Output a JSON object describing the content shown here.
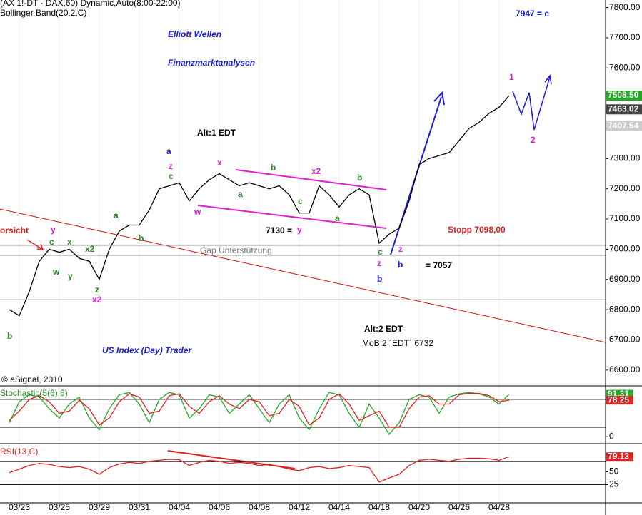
{
  "chart_data": [
    {
      "type": "line",
      "title": "(AX 1!-DT - DAX,60) Dynamic,Auto(8:00-22:00)",
      "subtitle": "Bollinger Band(20,2,C)",
      "copyright": "© eSignal, 2010",
      "color": "#000000",
      "categories": [
        null,
        "03/23",
        null,
        null,
        null,
        "03/25",
        null,
        null,
        null,
        "03/29",
        null,
        null,
        null,
        "03/31",
        null,
        null,
        null,
        "04/04",
        null,
        null,
        null,
        "04/06",
        null,
        null,
        null,
        "04/08",
        null,
        null,
        null,
        "04/12",
        null,
        null,
        null,
        "04/14",
        null,
        null,
        null,
        "04/18",
        null,
        null,
        null,
        "04/20",
        null,
        null,
        null,
        "04/26",
        null,
        null,
        null,
        "04/28",
        null
      ],
      "values": [
        6800,
        6780,
        6860,
        6960,
        7000,
        6990,
        7000,
        6970,
        6960,
        6900,
        7000,
        7060,
        7080,
        7080,
        7130,
        7200,
        7210,
        7220,
        7160,
        7200,
        7230,
        7250,
        7230,
        7210,
        7220,
        7210,
        7200,
        7210,
        7180,
        7120,
        7120,
        7210,
        7180,
        7140,
        7180,
        7200,
        7180,
        7020,
        7050,
        7070,
        7160,
        7280,
        7300,
        7310,
        7320,
        7360,
        7400,
        7420,
        7450,
        7470,
        7508.5
      ],
      "ylim": [
        6550,
        7825
      ],
      "yticks": [
        {
          "value": 6600,
          "label": "6600.00"
        },
        {
          "value": 6700,
          "label": "6700.00"
        },
        {
          "value": 6800,
          "label": "6800.00"
        },
        {
          "value": 6900,
          "label": "6900.00"
        },
        {
          "value": 7000,
          "label": "7000.00"
        },
        {
          "value": 7100,
          "label": "7100.00"
        },
        {
          "value": 7200,
          "label": "7200.00"
        },
        {
          "value": 7300,
          "label": "7300.00"
        },
        {
          "value": 7400,
          "label": "7400.00"
        },
        {
          "value": 7500,
          "label": "7500.00"
        },
        {
          "value": 7600,
          "label": "7600.00"
        },
        {
          "value": 7700,
          "label": "7700.00"
        },
        {
          "value": 7800,
          "label": "7800.00"
        }
      ],
      "price_flags": [
        {
          "value": 7508.5,
          "label": "7508.50",
          "color": "#22aa22"
        },
        {
          "value": 7463.02,
          "label": "7463.02",
          "color": "#444444"
        },
        {
          "value": 7407.54,
          "label": "7407.54",
          "color": "#cccccc"
        }
      ],
      "annotations": [
        {
          "text": "7947 = c",
          "color": "#1a1adb"
        },
        {
          "text": "Elliott Wellen",
          "color": "#1a1adb"
        },
        {
          "text": "Finanzmarktanalysen",
          "color": "#1a1adb"
        },
        {
          "text": "US Index (Day) Trader",
          "color": "#1a1adb"
        },
        {
          "text": "Alt:1 EDT",
          "color": "#000000"
        },
        {
          "text": "Alt:2 EDT",
          "color": "#000000"
        },
        {
          "text": "MoB 2 ´EDT´ 6732",
          "color": "#000000"
        },
        {
          "text": "Stopp 7098,00",
          "color": "#e02020"
        },
        {
          "text": "Gap Unterstützung",
          "color": "#777777"
        },
        {
          "text": "= 7057",
          "color": "#000000"
        },
        {
          "text": "7130 =",
          "color": "#000000"
        },
        {
          "text": "orsicht",
          "color": "#e02020"
        },
        {
          "text": "a",
          "color": "#1a1adb"
        },
        {
          "text": "b",
          "color": "#1a1adb"
        },
        {
          "text": "b",
          "color": "#1a1adb"
        },
        {
          "text": "1",
          "color": "#e020d0"
        },
        {
          "text": "2",
          "color": "#e020d0"
        },
        {
          "text": "z",
          "color": "#e020d0"
        },
        {
          "text": "c",
          "color": "#2a8a2a"
        },
        {
          "text": "x",
          "color": "#e020d0"
        },
        {
          "text": "b",
          "color": "#2a8a2a"
        },
        {
          "text": "x2",
          "color": "#e020d0"
        },
        {
          "text": "b",
          "color": "#2a8a2a"
        },
        {
          "text": "a",
          "color": "#2a8a2a"
        },
        {
          "text": "w",
          "color": "#e020d0"
        },
        {
          "text": "a",
          "color": "#2a8a2a"
        },
        {
          "text": "c",
          "color": "#2a8a2a"
        },
        {
          "text": "y",
          "color": "#e020d0"
        },
        {
          "text": "c",
          "color": "#2a8a2a"
        },
        {
          "text": "z",
          "color": "#e020d0"
        },
        {
          "text": "z",
          "color": "#e020d0"
        },
        {
          "text": "y",
          "color": "#e020d0"
        },
        {
          "text": "c",
          "color": "#2a8a2a"
        },
        {
          "text": "x",
          "color": "#2a8a2a"
        },
        {
          "text": "x2",
          "color": "#2a8a2a"
        },
        {
          "text": "w",
          "color": "#2a8a2a"
        },
        {
          "text": "y",
          "color": "#2a8a2a"
        },
        {
          "text": "z",
          "color": "#2a8a2a"
        },
        {
          "text": "x2",
          "color": "#e020d0"
        },
        {
          "text": "b",
          "color": "#2a8a2a"
        },
        {
          "text": "b",
          "color": "#2a8a2a"
        },
        {
          "text": "a",
          "color": "#2a8a2a"
        }
      ]
    },
    {
      "type": "line",
      "title": "Stochastic(5(6),6)",
      "title_color": "#2a8a2a",
      "ylim": [
        -15,
        106
      ],
      "yticks": [
        0
      ],
      "levels": [
        20,
        80
      ],
      "series": [
        {
          "color": "#22aa22",
          "flag": true,
          "values": [
            30,
            75,
            90,
            85,
            60,
            40,
            70,
            85,
            40,
            15,
            60,
            90,
            95,
            70,
            30,
            80,
            95,
            90,
            40,
            60,
            90,
            85,
            50,
            70,
            90,
            60,
            30,
            70,
            90,
            40,
            15,
            60,
            95,
            90,
            50,
            20,
            70,
            40,
            5,
            30,
            80,
            90,
            85,
            50,
            85,
            92,
            95,
            92,
            85,
            70,
            91.31
          ]
        },
        {
          "color": "#e02020",
          "flag": true,
          "values": [
            35,
            55,
            80,
            88,
            75,
            50,
            55,
            78,
            60,
            25,
            40,
            75,
            92,
            85,
            50,
            55,
            88,
            92,
            65,
            50,
            75,
            88,
            70,
            60,
            80,
            75,
            45,
            50,
            80,
            65,
            25,
            40,
            80,
            92,
            70,
            35,
            45,
            55,
            20,
            20,
            60,
            85,
            88,
            70,
            70,
            90,
            93,
            93,
            88,
            75,
            78.25
          ]
        }
      ]
    },
    {
      "type": "line",
      "title": "RSI(13,C)",
      "title_color": "#e02020",
      "ylim": [
        -10,
        100
      ],
      "yticks": [
        25,
        50
      ],
      "levels": [
        25,
        70
      ],
      "series": [
        {
          "color": "#e02020",
          "flag": true,
          "values": [
            48,
            55,
            62,
            66,
            64,
            60,
            58,
            60,
            55,
            45,
            58,
            65,
            68,
            66,
            70,
            72,
            74,
            73,
            62,
            68,
            72,
            70,
            66,
            68,
            66,
            62,
            64,
            60,
            55,
            52,
            58,
            60,
            56,
            58,
            62,
            60,
            58,
            30,
            38,
            45,
            62,
            72,
            74,
            72,
            70,
            74,
            76,
            76,
            75,
            72,
            79.13
          ]
        }
      ]
    }
  ]
}
